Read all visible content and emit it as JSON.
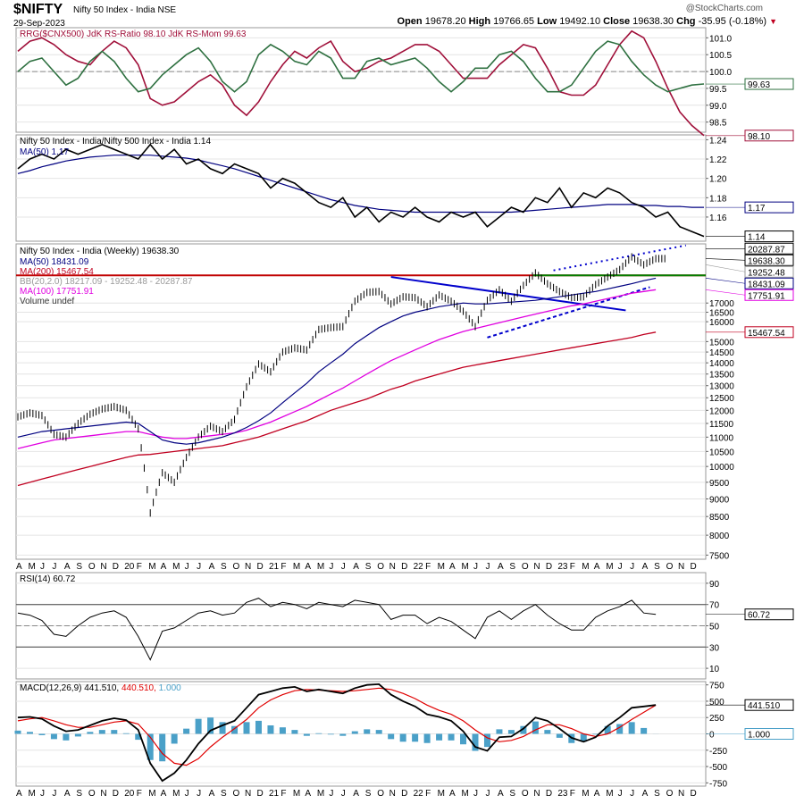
{
  "header": {
    "symbol": "$NIFTY",
    "name": "Nifty 50 Index - India NSE",
    "date": "29-Sep-2023",
    "brand": "@StockCharts.com",
    "open_l": "Open",
    "open": "19678.20",
    "high_l": "High",
    "high": "19766.65",
    "low_l": "Low",
    "low": "19492.10",
    "close_l": "Close",
    "close": "19638.30",
    "chg_l": "Chg",
    "chg": "-35.95 (-0.18%)"
  },
  "colors": {
    "up": "#000000",
    "ma50": "#000080",
    "ma200": "#c00020",
    "ma100": "#e000e0",
    "rsratio": "#a0103a",
    "rsmom": "#2e7040",
    "resistance": "#c00000",
    "support": "#008000",
    "trend": "#0000cc",
    "macd_hist": "#4aa0c8"
  },
  "chart_data": [
    {
      "type": "line",
      "panel": "rrg",
      "legend": "RRG($CNX500) JdK RS-Ratio 98.10 JdK RS-Mom 99.63",
      "ticks": [
        101.0,
        100.5,
        100.0,
        99.5,
        99.0,
        98.5
      ],
      "ylim": [
        98.2,
        101.3
      ],
      "last_labels": [
        "99.63",
        "98.10"
      ],
      "series": [
        {
          "name": "JdK RS-Ratio",
          "values": [
            100.6,
            100.9,
            101.0,
            100.8,
            100.5,
            100.3,
            100.2,
            100.6,
            100.9,
            100.7,
            100.2,
            99.2,
            99.0,
            99.1,
            99.4,
            99.7,
            99.9,
            99.6,
            99.0,
            98.7,
            99.1,
            99.7,
            100.2,
            100.6,
            100.4,
            100.7,
            100.9,
            100.3,
            100.0,
            100.1,
            100.3,
            100.4,
            100.6,
            100.8,
            100.8,
            100.6,
            100.2,
            99.8,
            99.8,
            99.8,
            100.2,
            100.5,
            100.8,
            100.7,
            100.1,
            99.4,
            99.3,
            99.3,
            99.6,
            100.2,
            100.8,
            101.2,
            101.0,
            100.3,
            99.5,
            98.8,
            98.4,
            98.1
          ]
        },
        {
          "name": "JdK RS-Mom",
          "values": [
            100.0,
            100.3,
            100.4,
            100.0,
            99.6,
            99.8,
            100.3,
            100.6,
            100.3,
            99.8,
            99.4,
            99.5,
            99.9,
            100.2,
            100.5,
            100.7,
            100.3,
            99.7,
            99.4,
            99.7,
            100.5,
            100.8,
            100.6,
            100.3,
            100.2,
            100.6,
            100.4,
            99.8,
            99.8,
            100.3,
            100.4,
            100.2,
            100.3,
            100.4,
            100.1,
            99.7,
            99.4,
            99.7,
            100.1,
            100.1,
            100.5,
            100.6,
            100.3,
            99.8,
            99.4,
            99.4,
            99.6,
            100.1,
            100.6,
            100.9,
            100.8,
            100.3,
            99.9,
            99.6,
            99.4,
            99.5,
            99.6,
            99.63
          ]
        }
      ]
    },
    {
      "type": "line",
      "panel": "ratio",
      "legend": "Nifty 50 Index - India/Nifty 500 Index - India 1.14",
      "ma_legend": "MA(50) 1.17",
      "ticks": [
        1.24,
        1.22,
        1.2,
        1.18,
        1.16
      ],
      "ylim": [
        1.135,
        1.245
      ],
      "last_labels": [
        "1.17",
        "1.14"
      ],
      "series": [
        {
          "name": "ratio",
          "values": [
            1.21,
            1.22,
            1.225,
            1.22,
            1.23,
            1.225,
            1.23,
            1.235,
            1.23,
            1.225,
            1.22,
            1.235,
            1.22,
            1.23,
            1.215,
            1.22,
            1.21,
            1.205,
            1.215,
            1.21,
            1.205,
            1.19,
            1.2,
            1.195,
            1.185,
            1.175,
            1.17,
            1.18,
            1.16,
            1.17,
            1.155,
            1.165,
            1.16,
            1.17,
            1.16,
            1.155,
            1.165,
            1.16,
            1.165,
            1.15,
            1.16,
            1.17,
            1.165,
            1.18,
            1.175,
            1.19,
            1.17,
            1.185,
            1.18,
            1.19,
            1.185,
            1.175,
            1.17,
            1.16,
            1.165,
            1.15,
            1.145,
            1.14
          ]
        },
        {
          "name": "MA(50)",
          "values": [
            1.205,
            1.208,
            1.212,
            1.215,
            1.218,
            1.22,
            1.222,
            1.223,
            1.224,
            1.224,
            1.224,
            1.224,
            1.223,
            1.222,
            1.221,
            1.219,
            1.216,
            1.213,
            1.21,
            1.206,
            1.202,
            1.198,
            1.194,
            1.19,
            1.186,
            1.182,
            1.178,
            1.175,
            1.172,
            1.17,
            1.168,
            1.167,
            1.166,
            1.165,
            1.165,
            1.165,
            1.165,
            1.165,
            1.165,
            1.165,
            1.165,
            1.165,
            1.166,
            1.167,
            1.168,
            1.169,
            1.17,
            1.171,
            1.172,
            1.173,
            1.173,
            1.173,
            1.172,
            1.172,
            1.171,
            1.171,
            1.17,
            1.17
          ]
        }
      ]
    },
    {
      "type": "line",
      "panel": "price",
      "scale": "log",
      "legend": "Nifty 50 Index - India (Weekly) 19638.30",
      "legends": [
        "MA(50) 18431.09",
        "MA(200) 15467.54",
        "BB(20,2.0) 18217.09 - 19252.48 - 20287.87",
        "MA(100) 17751.91",
        "Volume undef"
      ],
      "ticks": [
        7500,
        8000,
        8500,
        9000,
        9500,
        10000,
        10500,
        11000,
        11500,
        12000,
        12500,
        13000,
        13500,
        14000,
        14500,
        15000,
        16000,
        16500,
        17000
      ],
      "ylim": [
        7400,
        20600
      ],
      "last_labels": [
        "20287.87",
        "19638.30",
        "19252.48",
        "18431.09",
        "17751.91",
        "15467.54"
      ],
      "months": [
        "A",
        "M",
        "J",
        "J",
        "A",
        "S",
        "O",
        "N",
        "D",
        "20",
        "F",
        "M",
        "A",
        "M",
        "J",
        "J",
        "A",
        "S",
        "O",
        "N",
        "D",
        "21",
        "F",
        "M",
        "A",
        "M",
        "J",
        "J",
        "A",
        "S",
        "O",
        "N",
        "D",
        "22",
        "F",
        "M",
        "A",
        "M",
        "J",
        "J",
        "A",
        "S",
        "O",
        "N",
        "D",
        "23",
        "F",
        "M",
        "A",
        "M",
        "J",
        "J",
        "A",
        "S",
        "O",
        "N",
        "D"
      ],
      "series": [
        {
          "name": "Nifty 50",
          "values": [
            11750,
            11900,
            11800,
            11100,
            11000,
            11500,
            11850,
            12050,
            12150,
            12000,
            11300,
            8600,
            9800,
            9500,
            10300,
            11000,
            11400,
            11200,
            11650,
            12950,
            13950,
            13600,
            14500,
            14700,
            14600,
            15600,
            15700,
            15750,
            17100,
            17600,
            17650,
            16950,
            17350,
            17300,
            16800,
            17450,
            17100,
            16550,
            15750,
            17150,
            17750,
            17100,
            18000,
            18750,
            18100,
            17650,
            17300,
            17350,
            18050,
            18500,
            18950,
            19750,
            19250,
            19640
          ]
        },
        {
          "name": "MA(50)",
          "values": [
            11000,
            11100,
            11200,
            11250,
            11300,
            11350,
            11400,
            11450,
            11500,
            11550,
            11500,
            11200,
            10900,
            10800,
            10750,
            10800,
            10900,
            11000,
            11150,
            11350,
            11600,
            11900,
            12300,
            12700,
            13100,
            13600,
            14000,
            14400,
            14900,
            15300,
            15700,
            16000,
            16300,
            16500,
            16650,
            16800,
            16900,
            17000,
            16950,
            16950,
            17000,
            17050,
            17100,
            17150,
            17250,
            17350,
            17450,
            17550,
            17650,
            17800,
            17950,
            18100,
            18280,
            18431
          ]
        },
        {
          "name": "MA(100)",
          "values": [
            10600,
            10700,
            10800,
            10900,
            10950,
            11000,
            11050,
            11100,
            11150,
            11200,
            11200,
            11100,
            11000,
            10950,
            10950,
            11000,
            11050,
            11100,
            11150,
            11250,
            11400,
            11550,
            11750,
            11950,
            12150,
            12400,
            12650,
            12900,
            13200,
            13500,
            13800,
            14100,
            14350,
            14600,
            14850,
            15100,
            15300,
            15500,
            15650,
            15800,
            15950,
            16100,
            16250,
            16400,
            16550,
            16700,
            16850,
            16950,
            17100,
            17250,
            17400,
            17550,
            17650,
            17752
          ]
        },
        {
          "name": "MA(200)",
          "values": [
            9400,
            9500,
            9600,
            9700,
            9800,
            9900,
            10000,
            10100,
            10200,
            10300,
            10380,
            10400,
            10450,
            10500,
            10550,
            10600,
            10650,
            10700,
            10800,
            10900,
            11000,
            11150,
            11300,
            11450,
            11600,
            11800,
            12000,
            12150,
            12300,
            12450,
            12650,
            12850,
            13000,
            13200,
            13350,
            13500,
            13650,
            13800,
            13900,
            14000,
            14100,
            14200,
            14300,
            14400,
            14500,
            14600,
            14700,
            14800,
            14900,
            15000,
            15100,
            15200,
            15350,
            15467
          ]
        }
      ]
    },
    {
      "type": "line",
      "panel": "rsi",
      "legend": "RSI(14) 60.72",
      "ticks": [
        90,
        70,
        50,
        30,
        10
      ],
      "ylim": [
        0,
        100
      ],
      "last_labels": [
        "60.72"
      ],
      "series": [
        {
          "name": "RSI(14)",
          "values": [
            62,
            60,
            55,
            42,
            40,
            50,
            58,
            62,
            64,
            58,
            40,
            18,
            45,
            48,
            55,
            62,
            64,
            60,
            62,
            72,
            76,
            68,
            72,
            70,
            66,
            72,
            70,
            68,
            74,
            72,
            70,
            56,
            60,
            60,
            52,
            58,
            54,
            46,
            38,
            58,
            64,
            56,
            64,
            70,
            60,
            52,
            46,
            46,
            58,
            64,
            68,
            74,
            62,
            60.72
          ]
        }
      ]
    },
    {
      "type": "line",
      "panel": "macd",
      "legend_prefix": "MACD(12,26,9)",
      "legend_vals": [
        "441.510,",
        "440.510,",
        "1.000"
      ],
      "ticks": [
        750,
        500,
        250,
        0,
        -250,
        -500,
        -750
      ],
      "ylim": [
        -800,
        800
      ],
      "last_labels": [
        "441.510",
        "1.000"
      ],
      "series": [
        {
          "name": "MACD",
          "values": [
            250,
            260,
            230,
            120,
            40,
            60,
            130,
            200,
            240,
            210,
            60,
            -450,
            -720,
            -600,
            -400,
            -150,
            50,
            130,
            200,
            400,
            600,
            650,
            700,
            720,
            650,
            680,
            650,
            620,
            700,
            750,
            760,
            600,
            500,
            420,
            300,
            260,
            200,
            40,
            -200,
            -260,
            -50,
            -40,
            80,
            250,
            200,
            80,
            -60,
            -120,
            -50,
            120,
            250,
            400,
            420,
            441.51
          ]
        },
        {
          "name": "Signal",
          "values": [
            200,
            230,
            250,
            200,
            140,
            100,
            100,
            140,
            180,
            200,
            150,
            -50,
            -300,
            -450,
            -480,
            -380,
            -200,
            -50,
            80,
            220,
            400,
            520,
            600,
            660,
            680,
            670,
            660,
            650,
            660,
            680,
            700,
            680,
            620,
            540,
            440,
            360,
            300,
            200,
            60,
            -60,
            -120,
            -100,
            -40,
            60,
            140,
            140,
            80,
            0,
            -40,
            0,
            100,
            220,
            330,
            440.51
          ]
        }
      ]
    }
  ]
}
